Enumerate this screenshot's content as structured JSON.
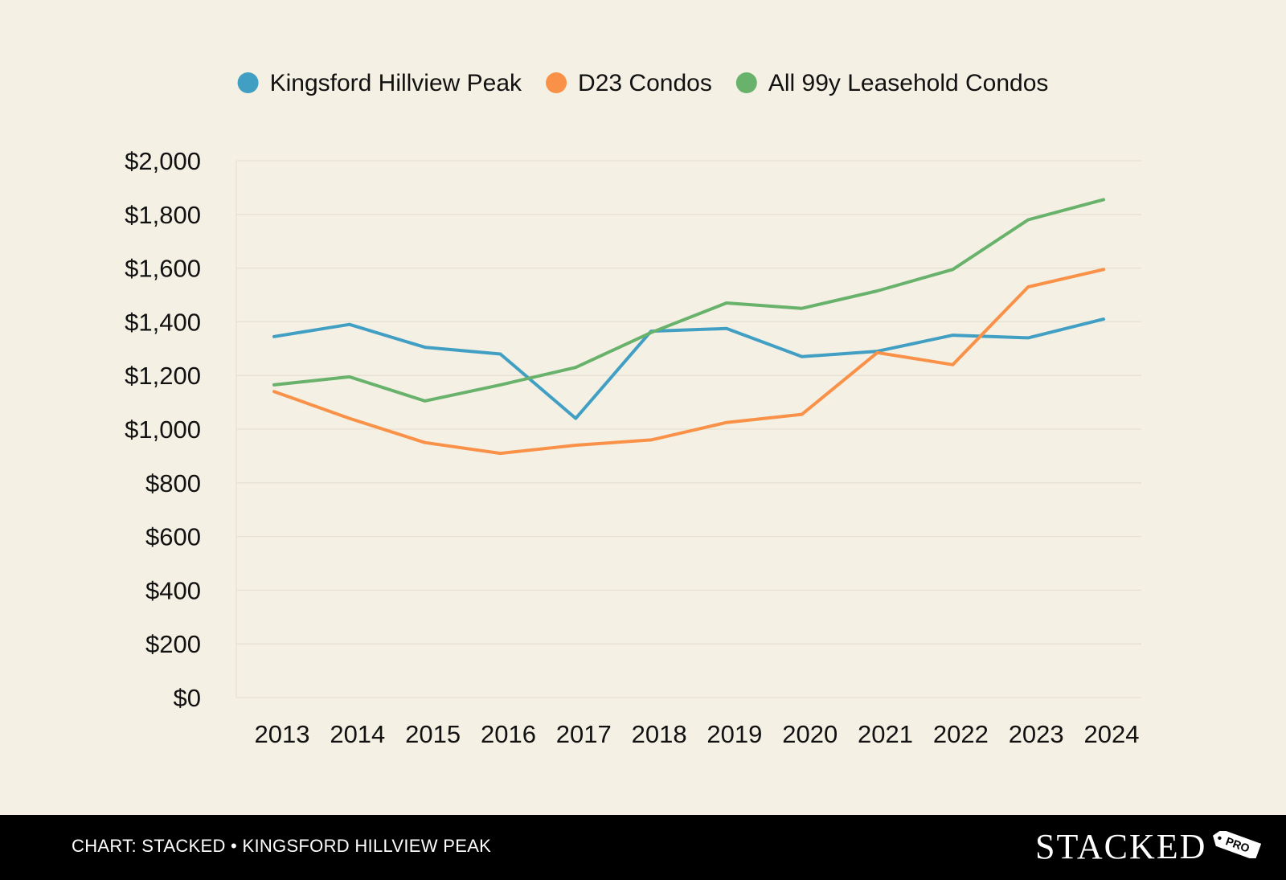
{
  "chart_data": {
    "type": "line",
    "title": "",
    "xlabel": "",
    "ylabel": "",
    "x": [
      "2013",
      "2014",
      "2015",
      "2016",
      "2017",
      "2018",
      "2019",
      "2020",
      "2021",
      "2022",
      "2023",
      "2024"
    ],
    "ylim": [
      0,
      2000
    ],
    "yticks": [
      0,
      200,
      400,
      600,
      800,
      1000,
      1200,
      1400,
      1600,
      1800,
      2000
    ],
    "ytick_labels": [
      "$0",
      "$200",
      "$400",
      "$600",
      "$800",
      "$1,000",
      "$1,200",
      "$1,400",
      "$1,600",
      "$1,800",
      "$2,000"
    ],
    "grid": true,
    "legend_position": "top-center",
    "series": [
      {
        "name": "Kingsford Hillview Peak",
        "color": "#419fc3",
        "values": [
          1345,
          1390,
          1305,
          1280,
          1040,
          1365,
          1375,
          1270,
          1290,
          1350,
          1340,
          1410
        ]
      },
      {
        "name": "D23 Condos",
        "color": "#f99248",
        "values": [
          1140,
          1040,
          950,
          910,
          940,
          960,
          1025,
          1055,
          1285,
          1240,
          1530,
          1595
        ]
      },
      {
        "name": "All 99y Leasehold Condos",
        "color": "#68b26b",
        "values": [
          1165,
          1195,
          1105,
          1165,
          1230,
          1360,
          1470,
          1450,
          1515,
          1595,
          1780,
          1855
        ]
      }
    ]
  },
  "footer": {
    "caption": "CHART: STACKED • KINGSFORD HILLVIEW PEAK",
    "brand": "STACKED",
    "brand_tag": "PRO"
  },
  "colors": {
    "background": "#f4f0e4",
    "gridline": "#e6e1d2",
    "footer_bg": "#000000",
    "footer_text": "#ffffff"
  }
}
